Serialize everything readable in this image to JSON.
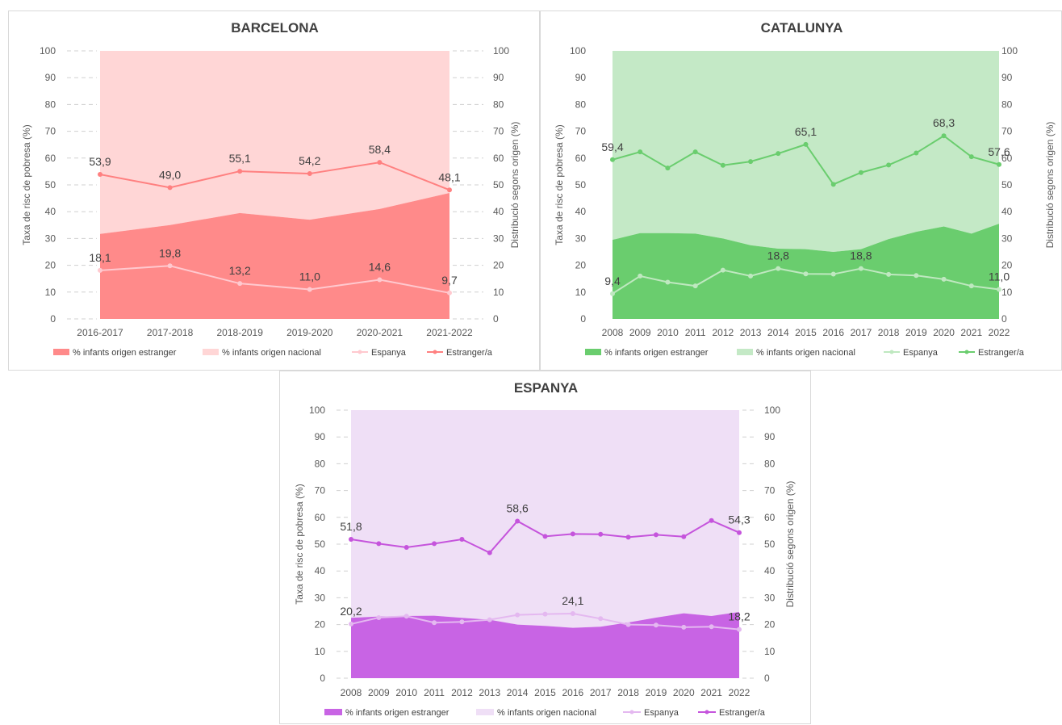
{
  "colors": {
    "bcn": {
      "foreign_area": "#ff8a8a",
      "national_area": "#ffd6d6",
      "espanya_line": "#ffc9cf",
      "estranger_line": "#ff8080"
    },
    "cat": {
      "foreign_area": "#6acd6e",
      "national_area": "#c4e9c6",
      "espanya_line": "#bfe8c0",
      "estranger_line": "#6acd6e"
    },
    "esp": {
      "foreign_area": "#c864e4",
      "national_area": "#efdff6",
      "espanya_line": "#e4b8f0",
      "estranger_line": "#c554dc"
    }
  },
  "chart_data": [
    {
      "id": "bcn",
      "type": "area+line",
      "title": "BARCELONA",
      "x": [
        "2016-2017",
        "2017-2018",
        "2018-2019",
        "2019-2020",
        "2020-2021",
        "2021-2022"
      ],
      "ylabel": "Taxa de risc de pobresa (%)",
      "y2label": "Distribució segons origen (%)",
      "ylim": [
        0,
        100
      ],
      "yticks": [
        0,
        10,
        20,
        30,
        40,
        50,
        60,
        70,
        80,
        90,
        100
      ],
      "grid": true,
      "legend_position": "bottom",
      "series": [
        {
          "name": "% infants origen estranger",
          "kind": "area",
          "axis": "secondary",
          "values": [
            31.7,
            35,
            39.5,
            37,
            41,
            47
          ]
        },
        {
          "name": "% infants origen nacional",
          "kind": "area",
          "axis": "secondary",
          "values": [
            68.3,
            65,
            60.5,
            63,
            59,
            53
          ]
        },
        {
          "name": "Espanya",
          "kind": "line",
          "axis": "primary",
          "values": [
            18.1,
            19.8,
            13.2,
            11.0,
            14.6,
            9.7
          ]
        },
        {
          "name": "Estranger/a",
          "kind": "line",
          "axis": "primary",
          "values": [
            53.9,
            49.0,
            55.1,
            54.2,
            58.4,
            48.1
          ]
        }
      ],
      "data_labels": [
        {
          "series": "Espanya",
          "index": 0,
          "text": "18,1"
        },
        {
          "series": "Espanya",
          "index": 1,
          "text": "19,8"
        },
        {
          "series": "Espanya",
          "index": 2,
          "text": "13,2"
        },
        {
          "series": "Espanya",
          "index": 3,
          "text": "11,0"
        },
        {
          "series": "Espanya",
          "index": 4,
          "text": "14,6"
        },
        {
          "series": "Espanya",
          "index": 5,
          "text": "9,7"
        },
        {
          "series": "Estranger/a",
          "index": 0,
          "text": "53,9"
        },
        {
          "series": "Estranger/a",
          "index": 1,
          "text": "49,0"
        },
        {
          "series": "Estranger/a",
          "index": 2,
          "text": "55,1"
        },
        {
          "series": "Estranger/a",
          "index": 3,
          "text": "54,2"
        },
        {
          "series": "Estranger/a",
          "index": 4,
          "text": "58,4"
        },
        {
          "series": "Estranger/a",
          "index": 5,
          "text": "48,1"
        }
      ]
    },
    {
      "id": "cat",
      "type": "area+line",
      "title": "CATALUNYA",
      "x": [
        "2008",
        "2009",
        "2010",
        "2011",
        "2012",
        "2013",
        "2014",
        "2015",
        "2016",
        "2017",
        "2018",
        "2019",
        "2020",
        "2021",
        "2022"
      ],
      "ylabel": "Taxa de risc de pobresa (%)",
      "y2label": "Distribució segons origen (%)",
      "ylim": [
        0,
        100
      ],
      "yticks": [
        0,
        10,
        20,
        30,
        40,
        50,
        60,
        70,
        80,
        90,
        100
      ],
      "grid": false,
      "legend_position": "bottom",
      "series": [
        {
          "name": "% infants origen estranger",
          "kind": "area",
          "axis": "secondary",
          "values": [
            29.5,
            32,
            32,
            31.8,
            30,
            27.5,
            26.2,
            26,
            25,
            26,
            29.8,
            32.5,
            34.5,
            31.8,
            35.5
          ]
        },
        {
          "name": "% infants origen nacional",
          "kind": "area",
          "axis": "secondary",
          "values": [
            70.5,
            68,
            68,
            68.2,
            70,
            72.5,
            73.8,
            74,
            75,
            74,
            70.2,
            67.5,
            65.5,
            68.2,
            64.5
          ]
        },
        {
          "name": "Espanya",
          "kind": "line",
          "axis": "primary",
          "values": [
            9.4,
            16,
            13.7,
            12.3,
            18.2,
            16,
            18.8,
            16.8,
            16.7,
            18.8,
            16.6,
            16.2,
            14.8,
            12.3,
            11.0
          ]
        },
        {
          "name": "Estranger/a",
          "kind": "line",
          "axis": "primary",
          "values": [
            59.4,
            62.3,
            56.3,
            62.3,
            57.3,
            58.7,
            61.7,
            65.1,
            50.2,
            54.6,
            57.4,
            61.9,
            68.3,
            60.5,
            57.6
          ]
        }
      ],
      "data_labels": [
        {
          "series": "Espanya",
          "index": 0,
          "text": "9,4"
        },
        {
          "series": "Espanya",
          "index": 6,
          "text": "18,8"
        },
        {
          "series": "Espanya",
          "index": 9,
          "text": "18,8"
        },
        {
          "series": "Espanya",
          "index": 14,
          "text": "11,0"
        },
        {
          "series": "Estranger/a",
          "index": 0,
          "text": "59,4"
        },
        {
          "series": "Estranger/a",
          "index": 7,
          "text": "65,1"
        },
        {
          "series": "Estranger/a",
          "index": 12,
          "text": "68,3"
        },
        {
          "series": "Estranger/a",
          "index": 14,
          "text": "57,6"
        }
      ]
    },
    {
      "id": "esp",
      "type": "area+line",
      "title": "ESPANYA",
      "x": [
        "2008",
        "2009",
        "2010",
        "2011",
        "2012",
        "2013",
        "2014",
        "2015",
        "2016",
        "2017",
        "2018",
        "2019",
        "2020",
        "2021",
        "2022"
      ],
      "ylabel": "Taxa de risc de pobresa (%)",
      "y2label": "Distribució segons origen (%)",
      "ylim": [
        0,
        100
      ],
      "yticks": [
        0,
        10,
        20,
        30,
        40,
        50,
        60,
        70,
        80,
        90,
        100
      ],
      "grid": true,
      "legend_position": "bottom",
      "series": [
        {
          "name": "% infants origen estranger",
          "kind": "area",
          "axis": "secondary",
          "values": [
            22.5,
            23,
            23.2,
            23.3,
            22.5,
            21.8,
            20,
            19.5,
            18.8,
            19.2,
            20.8,
            22.6,
            24.2,
            23.2,
            24.7
          ]
        },
        {
          "name": "% infants origen nacional",
          "kind": "area",
          "axis": "secondary",
          "values": [
            77.5,
            77,
            76.8,
            76.7,
            77.5,
            78.2,
            80,
            80.5,
            81.2,
            80.8,
            79.2,
            77.4,
            75.8,
            76.8,
            75.3
          ]
        },
        {
          "name": "Espanya",
          "kind": "line",
          "axis": "primary",
          "values": [
            20.2,
            22.6,
            23.1,
            20.7,
            21.0,
            21.8,
            23.6,
            23.9,
            24.1,
            22.2,
            20.0,
            19.8,
            19.0,
            19.2,
            18.2
          ]
        },
        {
          "name": "Estranger/a",
          "kind": "line",
          "axis": "primary",
          "values": [
            51.8,
            50.2,
            48.8,
            50.2,
            51.8,
            46.8,
            58.6,
            52.9,
            53.8,
            53.7,
            52.6,
            53.5,
            52.8,
            58.8,
            54.3
          ]
        }
      ],
      "data_labels": [
        {
          "series": "Espanya",
          "index": 0,
          "text": "20,2"
        },
        {
          "series": "Espanya",
          "index": 8,
          "text": "24,1"
        },
        {
          "series": "Espanya",
          "index": 14,
          "text": "18,2"
        },
        {
          "series": "Estranger/a",
          "index": 0,
          "text": "51,8"
        },
        {
          "series": "Estranger/a",
          "index": 6,
          "text": "58,6"
        },
        {
          "series": "Estranger/a",
          "index": 14,
          "text": "54,3"
        }
      ]
    }
  ]
}
